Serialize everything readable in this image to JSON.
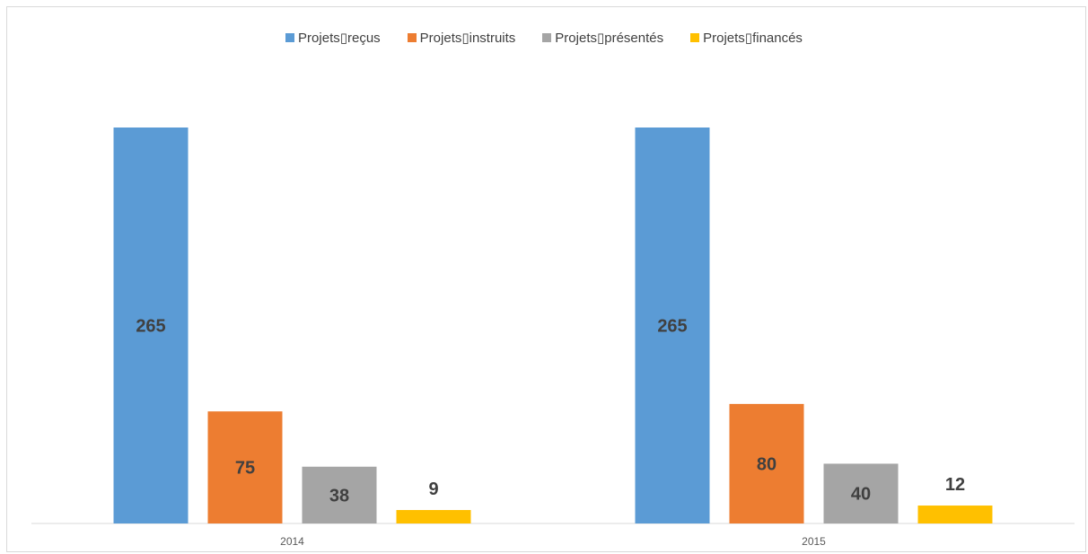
{
  "chart_data": {
    "type": "bar",
    "title": "",
    "xlabel": "",
    "ylabel": "",
    "categories": [
      "2014",
      "2015"
    ],
    "series": [
      {
        "name": "Projets▯reçus",
        "values": [
          265,
          265
        ],
        "color": "#5b9bd5"
      },
      {
        "name": "Projets▯instruits",
        "values": [
          75,
          80
        ],
        "color": "#ed7d31"
      },
      {
        "name": "Projets▯présentés",
        "values": [
          38,
          40
        ],
        "color": "#a5a5a5"
      },
      {
        "name": "Projets▯financés",
        "values": [
          9,
          12
        ],
        "color": "#ffc000"
      }
    ],
    "ylim": [
      0,
      265
    ],
    "grid": false,
    "legend_position": "top"
  }
}
